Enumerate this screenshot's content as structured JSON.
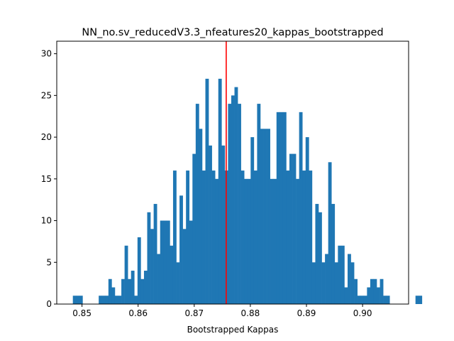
{
  "chart_data": {
    "type": "bar",
    "title": "NN_no.sv_reducedV3.3_nfeatures20_kappas_bootstrapped",
    "xlabel": "Bootstrapped Kappas",
    "ylabel": "",
    "xlim": [
      0.8455,
      0.9082
    ],
    "ylim": [
      0,
      31.5
    ],
    "x_ticks": [
      0.85,
      0.86,
      0.87,
      0.88,
      0.89,
      0.9
    ],
    "x_tick_labels": [
      "0.85",
      "0.86",
      "0.87",
      "0.88",
      "0.89",
      "0.90"
    ],
    "y_ticks": [
      0,
      5,
      10,
      15,
      20,
      25,
      30
    ],
    "y_tick_labels": [
      "0",
      "5",
      "10",
      "15",
      "20",
      "25",
      "30"
    ],
    "bin_start": 0.84837,
    "bin_width": 0.000576,
    "counts": [
      1,
      1,
      1,
      0,
      0,
      0,
      0,
      0,
      1,
      1,
      1,
      3,
      2,
      1,
      1,
      3,
      7,
      3,
      4,
      1,
      8,
      3,
      4,
      11,
      9,
      12,
      6,
      10,
      10,
      10,
      7,
      16,
      5,
      13,
      9,
      16,
      10,
      18,
      24,
      21,
      16,
      27,
      19,
      16,
      15,
      27,
      19,
      16,
      24,
      25,
      26,
      24,
      16,
      15,
      15,
      20,
      16,
      24,
      21,
      21,
      21,
      15,
      15,
      23,
      23,
      23,
      16,
      18,
      18,
      15,
      23,
      16,
      20,
      16,
      5,
      12,
      11,
      5,
      6,
      17,
      12,
      5,
      7,
      7,
      2,
      6,
      5,
      3,
      1,
      1,
      1,
      2,
      3,
      3,
      2,
      3,
      1,
      1,
      0,
      0,
      0,
      0,
      0,
      0,
      0,
      0,
      1,
      1,
      0,
      0,
      0,
      0,
      0,
      0,
      0,
      0,
      0,
      0,
      2
    ],
    "bar_color": "#1f77b4",
    "vline_x": 0.8757,
    "vline_color": "#ff0000",
    "grid": false
  }
}
